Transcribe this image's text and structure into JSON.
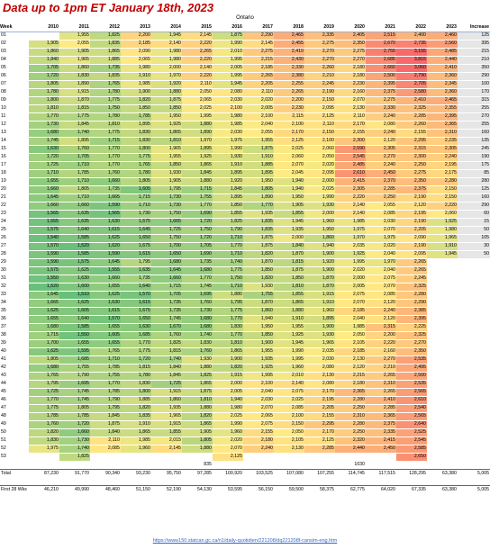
{
  "header": {
    "title": "Data up to 1pm ET January 18th, 2023",
    "region": "Ontario"
  },
  "columns": [
    "Week",
    "2010",
    "2011",
    "2012",
    "2013",
    "2014",
    "2015",
    "2016",
    "2017",
    "2018",
    "2019",
    "2020",
    "2021",
    "2022",
    "2023",
    "Increase"
  ],
  "colors": {
    "low": "#63be7b",
    "mid": "#ffeb84",
    "high": "#f8696b",
    "increase_bg": "#e6e6e6"
  },
  "weeks": [
    [
      "01",
      "",
      "1,955",
      "1,825",
      "2,200",
      "1,945",
      "2,145",
      "1,875",
      "2,290",
      "2,465",
      "2,335",
      "2,405",
      "2,515",
      "2,400",
      "2,460",
      "125"
    ],
    [
      "02",
      "1,905",
      "2,055",
      "1,835",
      "2,185",
      "2,140",
      "2,220",
      "1,990",
      "2,145",
      "2,455",
      "2,275",
      "2,350",
      "2,670",
      "2,735",
      "2,560",
      "395"
    ],
    [
      "03",
      "1,860",
      "1,905",
      "1,865",
      "2,090",
      "1,980",
      "2,265",
      "2,010",
      "2,275",
      "2,410",
      "2,270",
      "2,275",
      "2,755",
      "3,155",
      "2,485",
      "215"
    ],
    [
      "04",
      "1,840",
      "1,965",
      "1,885",
      "2,065",
      "1,980",
      "2,220",
      "1,995",
      "2,215",
      "2,430",
      "2,270",
      "2,270",
      "2,685",
      "3,815",
      "2,440",
      "210"
    ],
    [
      "05",
      "1,705",
      "1,860",
      "1,735",
      "1,980",
      "2,000",
      "2,140",
      "2,005",
      "2,185",
      "2,330",
      "2,260",
      "2,180",
      "2,660",
      "3,060",
      "2,410",
      "350"
    ],
    [
      "06",
      "1,720",
      "1,830",
      "1,835",
      "1,910",
      "1,970",
      "2,220",
      "1,995",
      "2,265",
      "2,380",
      "2,210",
      "2,180",
      "2,500",
      "2,790",
      "2,360",
      "290"
    ],
    [
      "07",
      "1,805",
      "1,890",
      "1,765",
      "1,985",
      "1,920",
      "2,110",
      "1,945",
      "2,205",
      "2,255",
      "2,245",
      "2,230",
      "2,395",
      "2,705",
      "2,345",
      "100"
    ],
    [
      "08",
      "1,780",
      "1,915",
      "1,780",
      "1,900",
      "1,880",
      "2,050",
      "2,080",
      "2,110",
      "2,265",
      "2,190",
      "2,160",
      "2,375",
      "2,580",
      "2,360",
      "170"
    ],
    [
      "09",
      "1,800",
      "1,870",
      "1,775",
      "1,820",
      "1,875",
      "2,065",
      "2,030",
      "2,020",
      "2,200",
      "2,150",
      "2,070",
      "2,275",
      "2,410",
      "2,465",
      "315"
    ],
    [
      "10",
      "1,810",
      "1,815",
      "1,750",
      "1,850",
      "1,850",
      "2,025",
      "2,100",
      "2,005",
      "2,230",
      "2,095",
      "2,130",
      "2,330",
      "2,325",
      "2,355",
      "255"
    ],
    [
      "11",
      "1,770",
      "1,775",
      "1,780",
      "1,785",
      "1,950",
      "1,995",
      "1,980",
      "2,100",
      "2,115",
      "2,125",
      "2,110",
      "2,240",
      "2,285",
      "2,395",
      "270"
    ],
    [
      "12",
      "1,730",
      "1,845",
      "1,810",
      "1,895",
      "1,925",
      "1,880",
      "1,985",
      "2,040",
      "2,100",
      "2,110",
      "2,170",
      "2,080",
      "2,260",
      "2,365",
      "255"
    ],
    [
      "13",
      "1,680",
      "1,740",
      "1,775",
      "1,830",
      "1,865",
      "1,890",
      "2,030",
      "2,055",
      "2,170",
      "2,150",
      "2,155",
      "2,240",
      "2,155",
      "2,310",
      "160"
    ],
    [
      "14",
      "1,745",
      "1,895",
      "1,715",
      "1,830",
      "1,810",
      "1,970",
      "1,975",
      "1,955",
      "2,125",
      "2,100",
      "2,300",
      "2,120",
      "2,295",
      "2,235",
      "135"
    ],
    [
      "15",
      "1,630",
      "1,760",
      "1,770",
      "1,800",
      "1,965",
      "1,895",
      "1,990",
      "1,875",
      "2,025",
      "2,060",
      "2,590",
      "2,305",
      "2,315",
      "2,305",
      "245"
    ],
    [
      "16",
      "1,720",
      "1,705",
      "1,770",
      "1,775",
      "1,955",
      "1,925",
      "1,930",
      "1,910",
      "2,060",
      "2,050",
      "2,545",
      "2,270",
      "2,300",
      "2,240",
      "190"
    ],
    [
      "17",
      "1,725",
      "1,710",
      "1,770",
      "1,765",
      "1,850",
      "1,865",
      "1,910",
      "1,885",
      "2,070",
      "2,020",
      "2,485",
      "2,240",
      "2,250",
      "2,195",
      "175"
    ],
    [
      "18",
      "1,710",
      "1,785",
      "1,760",
      "1,780",
      "1,930",
      "1,845",
      "1,895",
      "1,895",
      "2,045",
      "2,095",
      "2,610",
      "2,450",
      "2,275",
      "2,175",
      "85"
    ],
    [
      "19",
      "1,655",
      "1,710",
      "1,660",
      "1,805",
      "1,905",
      "1,880",
      "1,920",
      "1,950",
      "1,940",
      "2,000",
      "2,415",
      "2,370",
      "2,350",
      "2,280",
      "280"
    ],
    [
      "20",
      "1,660",
      "1,805",
      "1,735",
      "1,605",
      "1,795",
      "1,715",
      "1,845",
      "1,805",
      "1,940",
      "2,025",
      "2,305",
      "2,285",
      "2,375",
      "2,150",
      "125"
    ],
    [
      "21",
      "1,645",
      "1,710",
      "1,665",
      "1,715",
      "1,730",
      "1,755",
      "1,895",
      "1,890",
      "1,950",
      "1,990",
      "2,220",
      "2,250",
      "2,190",
      "2,150",
      "160"
    ],
    [
      "22",
      "1,660",
      "1,660",
      "1,590",
      "1,710",
      "1,730",
      "1,770",
      "1,850",
      "1,770",
      "1,905",
      "1,930",
      "2,140",
      "2,055",
      "2,120",
      "2,220",
      "290"
    ],
    [
      "23",
      "1,565",
      "1,635",
      "1,565",
      "1,730",
      "1,750",
      "1,690",
      "1,855",
      "1,935",
      "1,855",
      "2,000",
      "2,140",
      "2,085",
      "2,195",
      "2,060",
      "60"
    ],
    [
      "24",
      "1,555",
      "1,635",
      "1,630",
      "1,675",
      "1,665",
      "1,720",
      "1,825",
      "1,835",
      "1,945",
      "1,960",
      "1,985",
      "2,030",
      "2,190",
      "1,925",
      "15"
    ],
    [
      "25",
      "1,575",
      "1,640",
      "1,615",
      "1,645",
      "1,725",
      "1,750",
      "1,790",
      "1,835",
      "1,935",
      "1,950",
      "1,975",
      "2,070",
      "2,205",
      "1,980",
      "50"
    ],
    [
      "26",
      "1,540",
      "1,585",
      "1,625",
      "1,650",
      "1,750",
      "1,720",
      "1,710",
      "1,875",
      "2,000",
      "1,860",
      "1,970",
      "1,975",
      "2,090",
      "1,965",
      "105"
    ],
    [
      "27",
      "1,570",
      "1,520",
      "1,620",
      "1,675",
      "1,700",
      "1,705",
      "1,770",
      "1,875",
      "1,840",
      "1,940",
      "2,035",
      "2,020",
      "2,190",
      "1,910",
      "30"
    ],
    [
      "28",
      "1,590",
      "1,585",
      "1,590",
      "1,615",
      "1,650",
      "1,690",
      "1,710",
      "1,820",
      "1,870",
      "1,900",
      "1,925",
      "2,040",
      "2,095",
      "1,945",
      "50"
    ],
    [
      "29",
      "1,590",
      "1,575",
      "1,645",
      "1,795",
      "1,680",
      "1,735",
      "1,740",
      "1,870",
      "1,815",
      "1,920",
      "1,995",
      "1,970",
      "2,265",
      "",
      ""
    ],
    [
      "30",
      "1,575",
      "1,625",
      "1,555",
      "1,635",
      "1,645",
      "1,680",
      "1,775",
      "1,850",
      "1,875",
      "1,900",
      "2,020",
      "2,040",
      "2,265",
      "",
      ""
    ],
    [
      "31",
      "1,550",
      "1,630",
      "1,660",
      "1,735",
      "1,660",
      "1,770",
      "1,750",
      "1,820",
      "1,850",
      "1,870",
      "2,000",
      "2,075",
      "2,245",
      "",
      ""
    ],
    [
      "32",
      "1,520",
      "1,600",
      "1,655",
      "1,640",
      "1,715",
      "1,745",
      "1,710",
      "1,930",
      "1,810",
      "1,870",
      "2,005",
      "2,070",
      "2,325",
      "",
      ""
    ],
    [
      "33",
      "1,645",
      "1,510",
      "1,625",
      "1,570",
      "1,705",
      "1,695",
      "1,880",
      "1,755",
      "1,855",
      "1,915",
      "2,075",
      "2,085",
      "2,280",
      "",
      ""
    ],
    [
      "34",
      "1,665",
      "1,625",
      "1,630",
      "1,615",
      "1,735",
      "1,760",
      "1,795",
      "1,870",
      "1,865",
      "1,910",
      "2,070",
      "2,120",
      "2,290",
      "",
      ""
    ],
    [
      "35",
      "1,625",
      "1,605",
      "1,615",
      "1,675",
      "1,735",
      "1,730",
      "1,775",
      "1,860",
      "1,880",
      "1,960",
      "2,185",
      "2,240",
      "2,385",
      "",
      ""
    ],
    [
      "36",
      "1,655",
      "1,640",
      "1,570",
      "1,650",
      "1,745",
      "1,680",
      "1,770",
      "1,940",
      "1,910",
      "1,895",
      "2,040",
      "2,120",
      "2,395",
      "",
      ""
    ],
    [
      "37",
      "1,680",
      "1,585",
      "1,655",
      "1,630",
      "1,670",
      "1,680",
      "1,830",
      "1,950",
      "1,955",
      "1,900",
      "1,985",
      "2,315",
      "2,225",
      "",
      ""
    ],
    [
      "38",
      "1,715",
      "1,550",
      "1,605",
      "1,685",
      "1,760",
      "1,740",
      "1,770",
      "1,850",
      "1,925",
      "1,930",
      "2,050",
      "2,200",
      "2,325",
      "",
      ""
    ],
    [
      "39",
      "1,700",
      "1,655",
      "1,655",
      "1,770",
      "1,825",
      "1,830",
      "1,810",
      "1,900",
      "1,945",
      "1,965",
      "2,105",
      "2,220",
      "2,270",
      "",
      ""
    ],
    [
      "40",
      "1,625",
      "1,595",
      "1,765",
      "1,775",
      "1,815",
      "1,760",
      "1,865",
      "1,955",
      "1,990",
      "2,035",
      "2,185",
      "2,160",
      "2,350",
      "",
      ""
    ],
    [
      "41",
      "1,805",
      "1,685",
      "1,710",
      "1,720",
      "1,740",
      "1,930",
      "1,900",
      "1,935",
      "1,995",
      "2,030",
      "2,130",
      "2,270",
      "2,535",
      "",
      ""
    ],
    [
      "42",
      "1,680",
      "1,755",
      "1,785",
      "1,815",
      "1,840",
      "1,880",
      "1,820",
      "1,925",
      "1,960",
      "2,080",
      "2,120",
      "2,210",
      "2,495",
      "",
      ""
    ],
    [
      "43",
      "1,765",
      "1,790",
      "1,755",
      "1,780",
      "1,845",
      "1,825",
      "1,915",
      "1,995",
      "2,010",
      "2,130",
      "2,215",
      "2,265",
      "2,500",
      "",
      ""
    ],
    [
      "44",
      "1,795",
      "1,695",
      "1,770",
      "1,830",
      "1,725",
      "1,865",
      "2,000",
      "2,100",
      "2,140",
      "2,080",
      "2,180",
      "2,310",
      "2,535",
      "",
      ""
    ],
    [
      "45",
      "1,725",
      "1,745",
      "1,785",
      "1,800",
      "1,915",
      "1,875",
      "2,005",
      "2,040",
      "2,075",
      "2,170",
      "2,365",
      "2,265",
      "2,565",
      "",
      ""
    ],
    [
      "46",
      "1,770",
      "1,745",
      "1,790",
      "1,885",
      "1,860",
      "1,810",
      "1,940",
      "2,030",
      "2,025",
      "2,195",
      "2,280",
      "2,410",
      "2,610",
      "",
      ""
    ],
    [
      "47",
      "1,775",
      "1,805",
      "1,795",
      "1,820",
      "1,935",
      "1,880",
      "1,980",
      "2,070",
      "2,085",
      "2,205",
      "2,250",
      "2,285",
      "2,540",
      "",
      ""
    ],
    [
      "48",
      "1,785",
      "1,785",
      "1,845",
      "1,835",
      "1,965",
      "1,820",
      "2,025",
      "2,065",
      "2,100",
      "2,155",
      "2,310",
      "2,365",
      "2,565",
      "",
      ""
    ],
    [
      "49",
      "1,760",
      "1,720",
      "1,875",
      "1,910",
      "1,915",
      "1,865",
      "1,990",
      "2,075",
      "2,150",
      "2,295",
      "2,280",
      "2,375",
      "2,640",
      "",
      ""
    ],
    [
      "50",
      "1,820",
      "1,660",
      "1,840",
      "1,865",
      "1,855",
      "1,905",
      "1,960",
      "2,155",
      "2,050",
      "2,170",
      "2,250",
      "2,335",
      "2,525",
      "",
      ""
    ],
    [
      "51",
      "1,830",
      "1,730",
      "2,110",
      "1,985",
      "2,015",
      "1,805",
      "2,020",
      "2,180",
      "2,105",
      "2,125",
      "2,320",
      "2,415",
      "2,545",
      "",
      ""
    ],
    [
      "52",
      "1,975",
      "1,740",
      "2,085",
      "1,960",
      "2,145",
      "1,880",
      "2,070",
      "2,240",
      "2,130",
      "2,285",
      "2,440",
      "2,450",
      "2,585",
      "",
      ""
    ],
    [
      "53",
      "",
      "1,825",
      "",
      "",
      "",
      "",
      "2,125",
      "",
      "",
      "",
      "",
      "",
      "2,650",
      "",
      ""
    ]
  ],
  "extra_row": [
    "",
    "",
    "",
    "",
    "",
    "",
    "835",
    "",
    "",
    "",
    "",
    "1030",
    "",
    "",
    "",
    ""
  ],
  "totals": {
    "label": "Total",
    "values": [
      "87,230",
      "91,770",
      "90,340",
      "93,230",
      "95,750",
      "97,285",
      "100,920",
      "103,525",
      "107,080",
      "107,255",
      "114,745",
      "117,515",
      "128,295",
      "63,380",
      "5,005"
    ]
  },
  "first_weeks": {
    "label": "First 28 Wks",
    "values": [
      "46,210",
      "49,990",
      "48,460",
      "51,150",
      "52,190",
      "54,130",
      "53,595",
      "56,150",
      "59,500",
      "58,375",
      "62,775",
      "64,020",
      "67,335",
      "63,380",
      "5,005"
    ]
  },
  "source_url": "https://www150.statcan.gc.ca/n1/daily-quotidien/221208/dq221208f-cansim-eng.htm"
}
